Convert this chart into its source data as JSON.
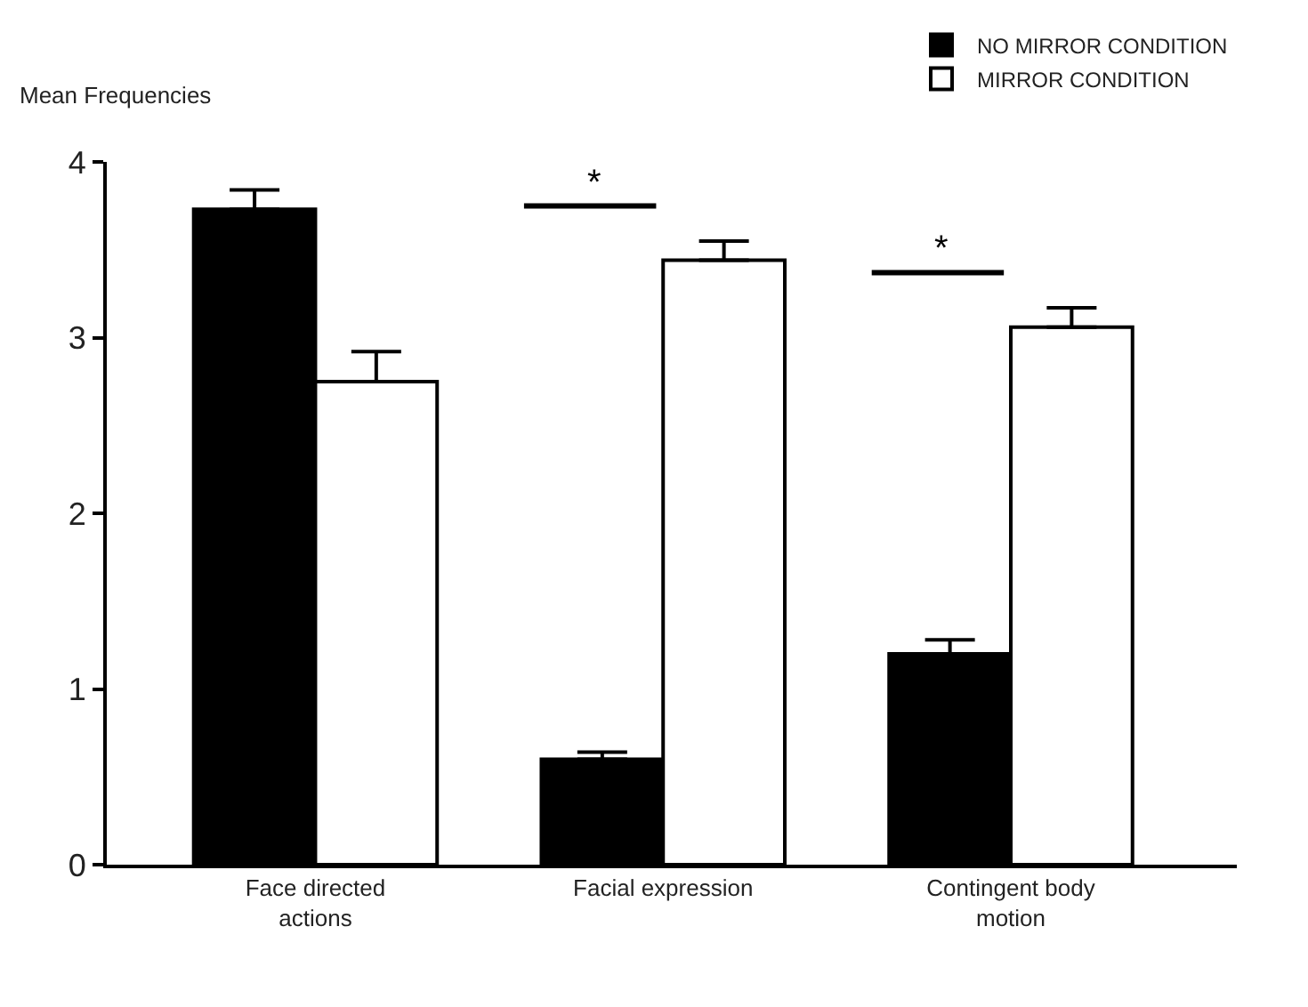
{
  "chart_data": {
    "type": "bar",
    "ylabel": "Mean Frequencies",
    "categories": [
      "Face directed actions",
      "Facial expression",
      "Contingent body motion"
    ],
    "series": [
      {
        "name": "NO MIRROR CONDITION",
        "color": "#000000",
        "values": [
          3.73,
          0.6,
          1.2
        ],
        "errors": [
          [
            3.73,
            3.84
          ],
          [
            0.6,
            0.64
          ],
          [
            1.2,
            1.28
          ]
        ]
      },
      {
        "name": "MIRROR CONDITION",
        "color": "#ffffff",
        "values": [
          2.75,
          3.44,
          3.06
        ],
        "errors": [
          [
            2.75,
            2.92
          ],
          [
            3.44,
            3.55
          ],
          [
            3.06,
            3.17
          ]
        ]
      }
    ],
    "annotations": [
      "*",
      "*"
    ],
    "ylim": [
      0,
      4
    ],
    "yticks": [
      0,
      1,
      2,
      3,
      4
    ],
    "legend": "top right"
  }
}
